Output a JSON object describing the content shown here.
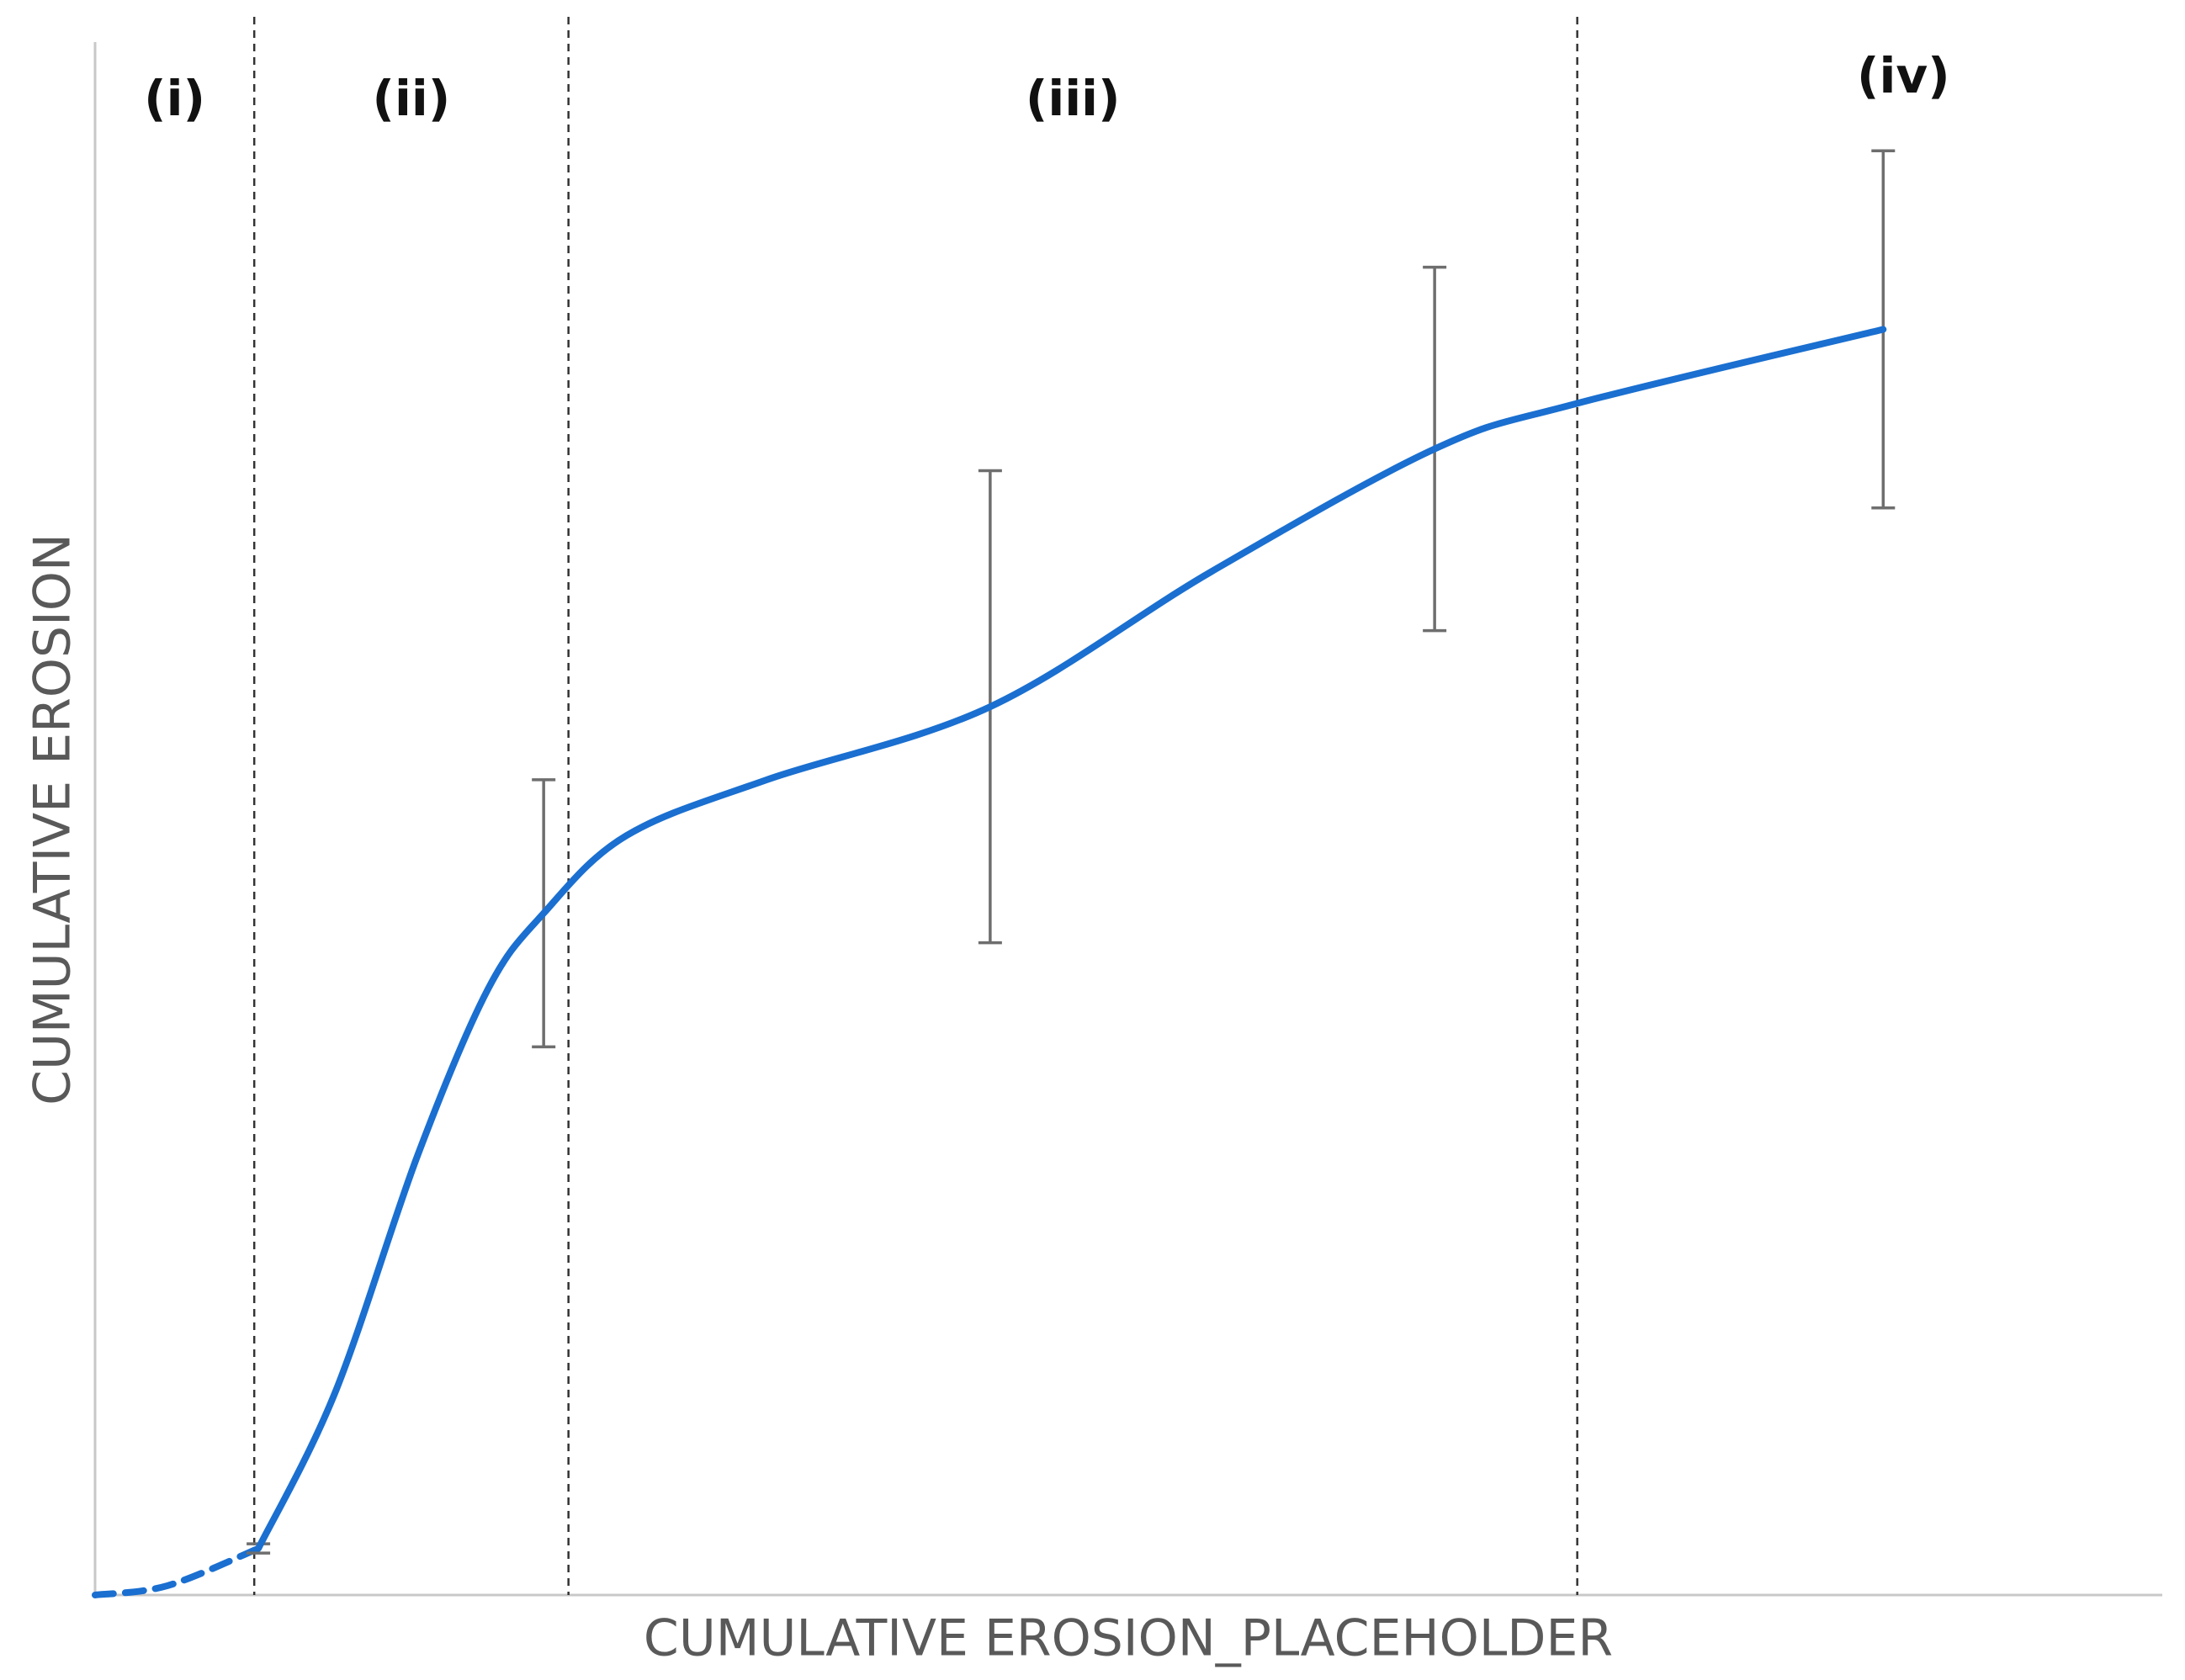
{
  "chart_data": {
    "type": "line",
    "x_label": "CUMULATIVE EROSION_PLACEHOLDER",
    "y_label": "CUMULATIVE EROSION",
    "xlim": [
      0,
      100
    ],
    "ylim": [
      0,
      100
    ],
    "regions": [
      "(i)",
      "(ii)",
      "(iii)",
      "(iv)"
    ],
    "dividers": [
      7.7,
      22.9,
      71.7
    ],
    "series": [
      {
        "color": "#1a6fd0",
        "dashed": true,
        "x": [
          0,
          3.5,
          7.9
        ],
        "values": [
          0,
          0.6,
          3.0
        ]
      },
      {
        "color": "#1a6fd0",
        "dashed": false,
        "x": [
          7.9,
          11.6,
          15.6,
          19.0,
          21.7,
          25.7,
          32.5,
          43.3,
          54.0,
          64.8,
          71.6,
          86.5
        ],
        "values": [
          3.0,
          13.0,
          28.3,
          39.0,
          43.9,
          48.9,
          52.5,
          57.2,
          65.9,
          73.8,
          76.7,
          81.5
        ],
        "errors": [
          0.3,
          null,
          null,
          null,
          8.6,
          null,
          null,
          15.2,
          null,
          11.7,
          null,
          11.5
        ]
      }
    ]
  }
}
